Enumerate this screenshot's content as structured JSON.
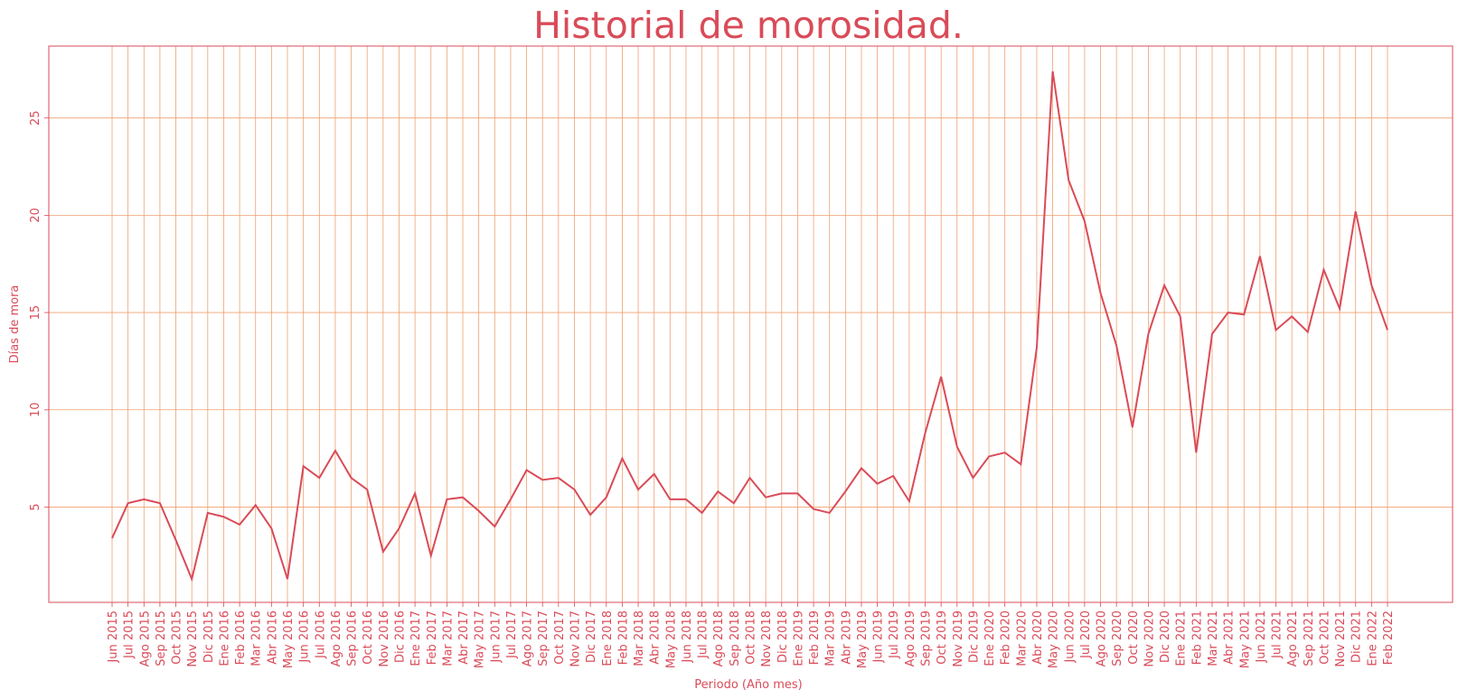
{
  "colors": {
    "accent": "#d94b58",
    "grid": "#f0a070",
    "background": "#ffffff"
  },
  "chart_data": {
    "type": "line",
    "title": "Historial de morosidad.",
    "xlabel": "Periodo (Año mes)",
    "ylabel": "Días de mora",
    "ylim": [
      0.1,
      28.7
    ],
    "yticks": [
      5,
      10,
      15,
      20,
      25
    ],
    "grid": true,
    "categories": [
      "Jun 2015",
      "Jul 2015",
      "Ago 2015",
      "Sep 2015",
      "Oct 2015",
      "Nov 2015",
      "Dic 2015",
      "Ene 2016",
      "Feb 2016",
      "Mar 2016",
      "Abr 2016",
      "May 2016",
      "Jun 2016",
      "Jul 2016",
      "Ago 2016",
      "Sep 2016",
      "Oct 2016",
      "Nov 2016",
      "Dic 2016",
      "Ene 2017",
      "Feb 2017",
      "Mar 2017",
      "Abr 2017",
      "May 2017",
      "Jun 2017",
      "Jul 2017",
      "Ago 2017",
      "Sep 2017",
      "Oct 2017",
      "Nov 2017",
      "Dic 2017",
      "Ene 2018",
      "Feb 2018",
      "Mar 2018",
      "Abr 2018",
      "May 2018",
      "Jun 2018",
      "Jul 2018",
      "Ago 2018",
      "Sep 2018",
      "Oct 2018",
      "Nov 2018",
      "Dic 2018",
      "Ene 2019",
      "Feb 2019",
      "Mar 2019",
      "Abr 2019",
      "May 2019",
      "Jun 2019",
      "Jul 2019",
      "Ago 2019",
      "Sep 2019",
      "Oct 2019",
      "Nov 2019",
      "Dic 2019",
      "Ene 2020",
      "Feb 2020",
      "Mar 2020",
      "Abr 2020",
      "May 2020",
      "Jun 2020",
      "Jul 2020",
      "Ago 2020",
      "Sep 2020",
      "Oct 2020",
      "Nov 2020",
      "Dic 2020",
      "Ene 2021",
      "Feb 2021",
      "Mar 2021",
      "Abr 2021",
      "May 2021",
      "Jun 2021",
      "Jul 2021",
      "Ago 2021",
      "Sep 2021",
      "Oct 2021",
      "Nov 2021",
      "Dic 2021",
      "Ene 2022",
      "Feb 2022"
    ],
    "values": [
      3.4,
      5.2,
      5.4,
      5.2,
      3.3,
      1.3,
      4.7,
      4.5,
      4.1,
      5.1,
      3.9,
      1.3,
      7.1,
      6.5,
      7.9,
      6.5,
      5.9,
      2.7,
      3.9,
      5.7,
      2.5,
      5.4,
      5.5,
      4.8,
      4.0,
      5.4,
      6.9,
      6.4,
      6.5,
      5.9,
      4.6,
      5.5,
      7.5,
      5.9,
      6.7,
      5.4,
      5.4,
      4.7,
      5.8,
      5.2,
      6.5,
      5.5,
      5.7,
      5.7,
      4.9,
      4.7,
      5.8,
      7.0,
      6.2,
      6.6,
      5.3,
      8.8,
      11.7,
      8.1,
      6.5,
      7.6,
      7.8,
      7.2,
      13.2,
      27.4,
      21.8,
      19.7,
      16.0,
      13.3,
      9.1,
      13.9,
      16.4,
      14.8,
      7.8,
      13.9,
      15.0,
      14.9,
      17.9,
      14.1,
      14.8,
      14.0,
      17.2,
      15.2,
      20.2,
      16.4,
      14.1
    ]
  }
}
